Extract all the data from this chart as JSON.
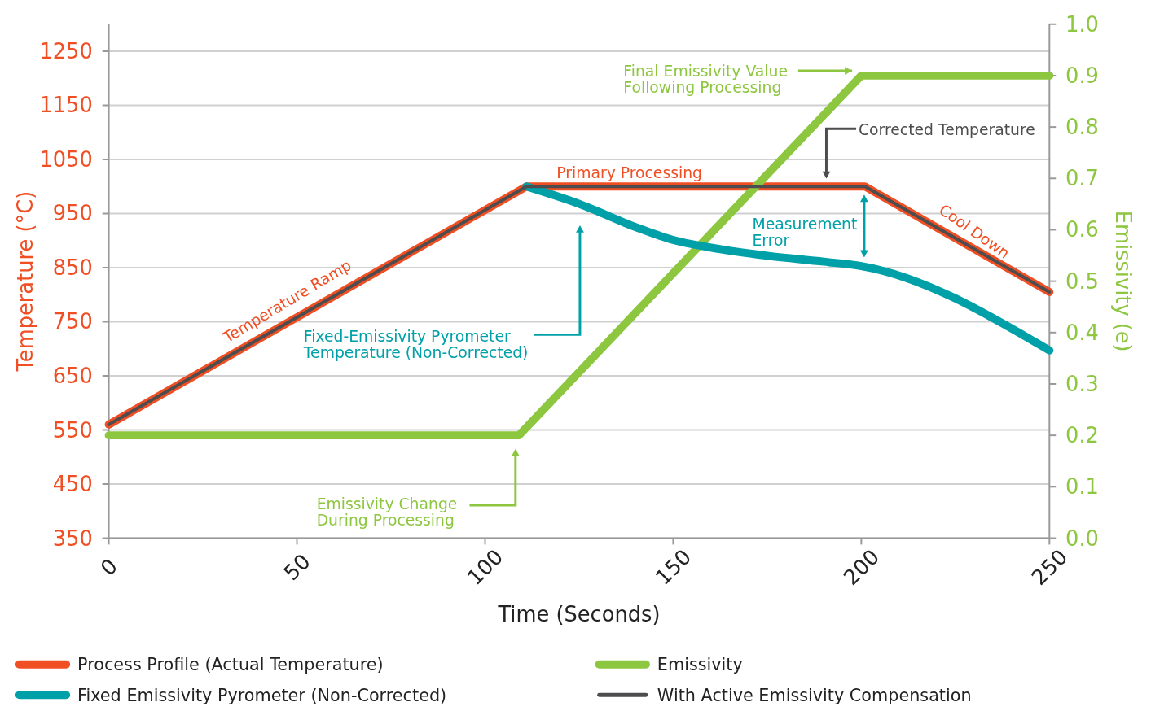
{
  "chart_data": {
    "type": "line",
    "xlabel": "Time (Seconds)",
    "ylabel": "Temperature (°C)",
    "y2label": "Emissivity (e)",
    "xlim": [
      0,
      250
    ],
    "xticks": [
      0,
      50,
      100,
      150,
      200,
      250
    ],
    "ylim": [
      350,
      1300
    ],
    "yticks": [
      350,
      450,
      550,
      650,
      750,
      850,
      950,
      1050,
      1150,
      1250
    ],
    "y2lim": [
      0,
      1
    ],
    "y2ticks": [
      {
        "value": 0,
        "label": "0.0"
      },
      {
        "value": 0.1,
        "label": "0.1"
      },
      {
        "value": 0.2,
        "label": "0.2"
      },
      {
        "value": 0.3,
        "label": "0.3"
      },
      {
        "value": 0.4,
        "label": "0.4"
      },
      {
        "value": 0.5,
        "label": "0.5"
      },
      {
        "value": 0.6,
        "label": "0.6"
      },
      {
        "value": 0.7,
        "label": "0.7"
      },
      {
        "value": 0.8,
        "label": "0.8"
      },
      {
        "value": 0.9,
        "label": "0.9"
      },
      {
        "value": 1,
        "label": "1.0"
      }
    ],
    "grid": "y",
    "legend": "bottom",
    "marker": "none",
    "line_style": "solid",
    "series": [
      {
        "name": "Process Profile (Actual Temperature)",
        "color": "#f04e23",
        "x": [
          0,
          111,
          201,
          250
        ],
        "values": [
          560,
          1000,
          1000,
          805
        ]
      },
      {
        "name": "Emissivity",
        "color": "#8dc63f",
        "axis": "y2",
        "x": [
          0,
          109,
          200,
          250
        ],
        "values": [
          0.2,
          0.2,
          0.9,
          0.9
        ]
      },
      {
        "name": "Fixed Emissivity Pyrometer (Non-Corrected)",
        "color": "#00a0a8",
        "x": [
          111,
          125,
          140,
          150,
          160,
          175,
          190,
          200,
          250
        ],
        "values": [
          1000,
          968,
          925,
          901,
          887,
          872,
          861,
          853,
          697
        ]
      },
      {
        "name": "With Active Emissivity Compensation",
        "color": "#4d4d4f",
        "x": [
          0,
          111,
          201,
          250
        ],
        "values": [
          560,
          1000,
          1000,
          805
        ]
      }
    ],
    "annotations": [
      "Final Emissivity Value\nFollowing Processing",
      "Corrected Temperature",
      "Primary Processing",
      "Temperature Ramp",
      "Cool Down",
      "Measurement\nError",
      "Fixed-Emissivity Pyrometer\nTemperature (Non-Corrected)",
      "Emissivity Change\nDuring Processing"
    ]
  }
}
